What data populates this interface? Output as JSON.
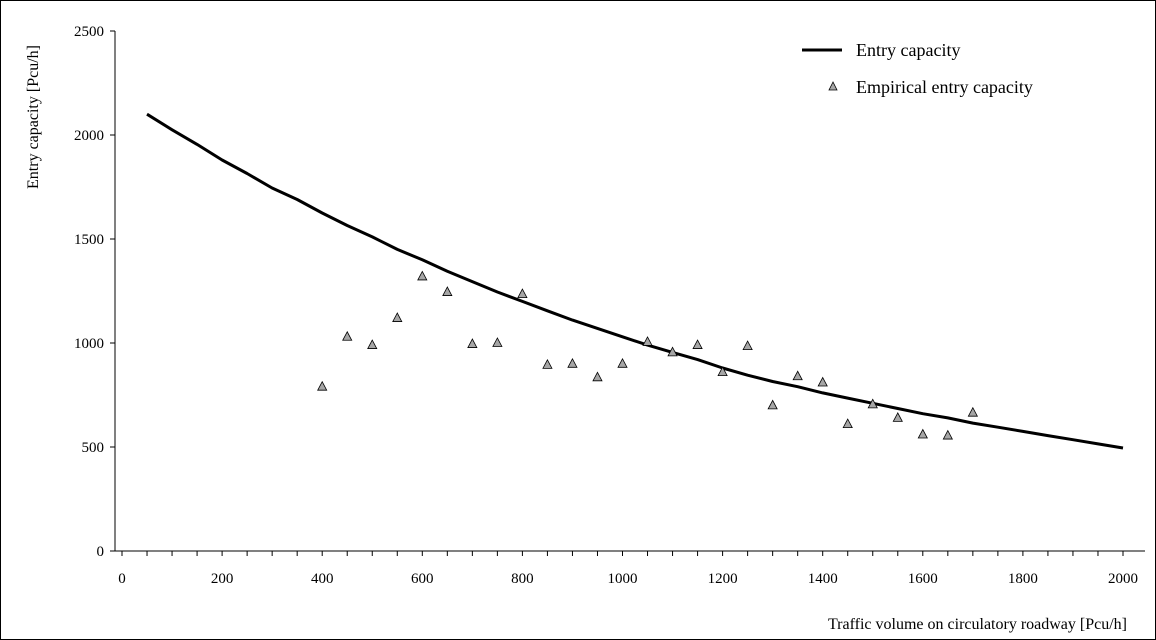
{
  "chart_data": {
    "type": "line",
    "title": "",
    "xlabel": "Traffic volume on circulatory roadway [Pcu/h]",
    "ylabel": "Entry capacity [Pcu/h]",
    "xlim": [
      0,
      2000
    ],
    "ylim": [
      0,
      2500
    ],
    "x_ticks": [
      0,
      200,
      400,
      600,
      800,
      1000,
      1200,
      1400,
      1600,
      1800,
      2000
    ],
    "y_ticks": [
      0,
      500,
      1000,
      1500,
      2000,
      2500
    ],
    "grid": false,
    "legend_position": "top-right",
    "series": [
      {
        "name": "Entry capacity",
        "kind": "line",
        "color": "#000000",
        "x": [
          50,
          100,
          150,
          200,
          250,
          300,
          350,
          400,
          450,
          500,
          550,
          600,
          650,
          700,
          750,
          800,
          850,
          900,
          950,
          1000,
          1050,
          1100,
          1150,
          1200,
          1250,
          1300,
          1350,
          1400,
          1450,
          1500,
          1550,
          1600,
          1650,
          1700,
          1750,
          1800,
          1850,
          1900,
          1950,
          2000
        ],
        "y": [
          2100,
          2025,
          1955,
          1880,
          1815,
          1745,
          1690,
          1625,
          1565,
          1510,
          1450,
          1400,
          1345,
          1295,
          1245,
          1200,
          1155,
          1110,
          1070,
          1030,
          990,
          955,
          920,
          880,
          845,
          815,
          790,
          760,
          735,
          710,
          685,
          660,
          640,
          615,
          595,
          575,
          555,
          535,
          515,
          495
        ]
      },
      {
        "name": "Empirical entry capacity",
        "kind": "scatter",
        "color": "#a6a6a6",
        "x": [
          400,
          450,
          500,
          550,
          600,
          650,
          700,
          750,
          800,
          850,
          900,
          950,
          1000,
          1050,
          1100,
          1150,
          1200,
          1250,
          1300,
          1350,
          1400,
          1450,
          1500,
          1550,
          1600,
          1650,
          1700
        ],
        "y": [
          790,
          1030,
          990,
          1120,
          1320,
          1245,
          995,
          1000,
          1235,
          895,
          900,
          835,
          900,
          1005,
          955,
          990,
          860,
          985,
          700,
          840,
          810,
          610,
          705,
          640,
          560,
          555,
          665
        ]
      }
    ]
  }
}
